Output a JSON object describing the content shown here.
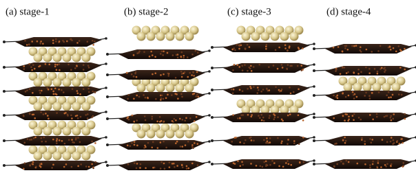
{
  "panels": [
    {
      "label": "(a) stage-1"
    },
    {
      "label": "(b) stage-2"
    },
    {
      "label": "(c) stage-3"
    },
    {
      "label": "(d) stage-4"
    }
  ]
}
